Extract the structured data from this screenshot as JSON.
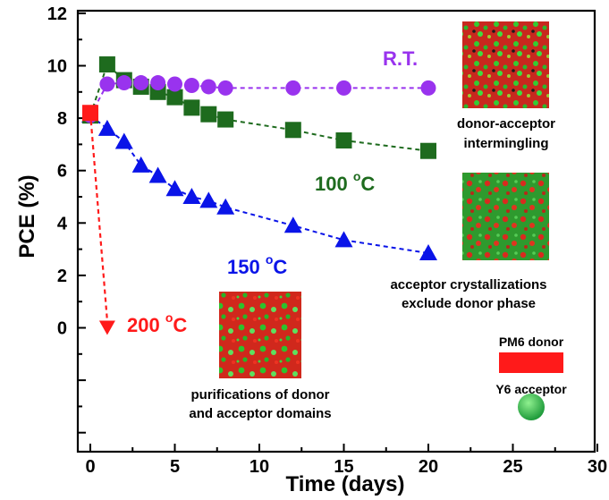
{
  "chart_data": {
    "type": "scatter",
    "title": "",
    "xlabel": "Time (days)",
    "ylabel": "PCE (%)",
    "xlim": [
      -1,
      30
    ],
    "ylim": [
      -7,
      12
    ],
    "x_ticks": [
      "0",
      "5",
      "10",
      "15",
      "20",
      "25",
      "30"
    ],
    "y_ticks": [
      "0",
      "2",
      "4",
      "6",
      "8",
      "10",
      "12"
    ],
    "grid": false,
    "series": [
      {
        "name": "R.T.",
        "label_text": "R.T.",
        "color": "#9933ee",
        "marker": "circle",
        "x": [
          0,
          1,
          2,
          3,
          4,
          5,
          6,
          7,
          8,
          12,
          15,
          20
        ],
        "y": [
          8.1,
          9.3,
          9.35,
          9.35,
          9.35,
          9.3,
          9.25,
          9.2,
          9.15,
          9.15,
          9.15,
          9.15
        ]
      },
      {
        "name": "100 °C",
        "label_main": "100 ",
        "label_sup": "o",
        "label_unit": "C",
        "color": "#1e6b1e",
        "marker": "square",
        "x": [
          0,
          1,
          2,
          3,
          4,
          5,
          6,
          7,
          8,
          12,
          15,
          20
        ],
        "y": [
          8.1,
          10.05,
          9.45,
          9.2,
          9.0,
          8.8,
          8.4,
          8.15,
          7.95,
          7.55,
          7.15,
          6.75
        ]
      },
      {
        "name": "150 °C",
        "label_main": "150 ",
        "label_sup": "o",
        "label_unit": "C",
        "color": "#0a14e8",
        "marker": "triangle",
        "x": [
          0,
          1,
          2,
          3,
          4,
          5,
          6,
          7,
          8,
          12,
          15,
          20
        ],
        "y": [
          8.1,
          7.6,
          7.1,
          6.2,
          5.8,
          5.3,
          5.0,
          4.85,
          4.6,
          3.9,
          3.35,
          2.85
        ]
      },
      {
        "name": "200 °C",
        "label_main": "200 ",
        "label_sup": "o",
        "label_unit": "C",
        "color": "#ff1a1a",
        "marker": "triangle-down",
        "x": [
          0,
          1
        ],
        "y": [
          8.2,
          0
        ],
        "marker_at": [
          {
            "x": 0,
            "y": 8.2,
            "marker": "square"
          },
          {
            "x": 1,
            "y": 0,
            "marker": "triangle-down"
          }
        ]
      }
    ],
    "annotations": {
      "rt_text": [
        "donor-acceptor",
        "intermingling"
      ],
      "c100_text": [
        "acceptor crystallizations",
        "exclude donor phase"
      ],
      "c200_text": [
        "purifications of donor",
        "and acceptor domains"
      ]
    },
    "legend": {
      "donor_label": "PM6 donor",
      "acceptor_label": "Y6 acceptor",
      "donor_color": "#ff1a1a",
      "acceptor_color": "#22aa44"
    }
  }
}
